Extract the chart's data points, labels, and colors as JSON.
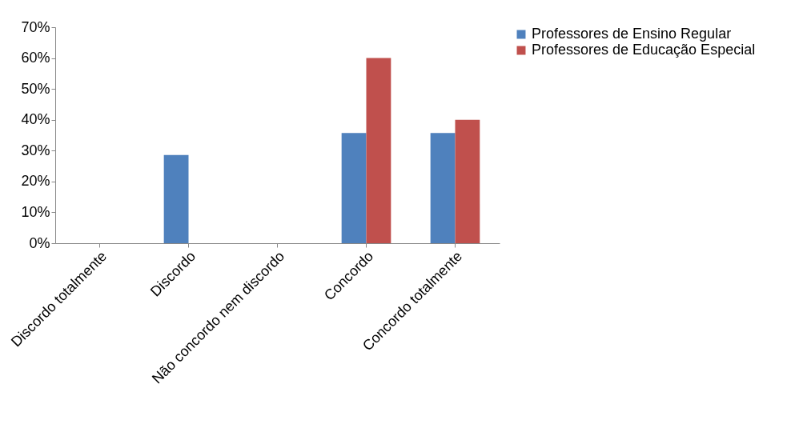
{
  "chart_data": {
    "type": "bar",
    "categories": [
      "Discordo totalmente",
      "Discordo",
      "Não concordo nem discordo",
      "Concordo",
      "Concordo totalmente"
    ],
    "series": [
      {
        "name": "Professores de Ensino Regular",
        "color": "#4f81bd",
        "values": [
          0,
          28.6,
          0,
          35.7,
          35.7
        ]
      },
      {
        "name": "Professores de Educação Especial",
        "color": "#c0504d",
        "values": [
          0,
          0,
          0,
          60,
          40
        ]
      }
    ],
    "ylim": [
      0,
      70
    ],
    "yticks": [
      {
        "value": 0,
        "label": "0%"
      },
      {
        "value": 10,
        "label": "10%"
      },
      {
        "value": 20,
        "label": "20%"
      },
      {
        "value": 30,
        "label": "30%"
      },
      {
        "value": 40,
        "label": "40%"
      },
      {
        "value": 50,
        "label": "50%"
      },
      {
        "value": 60,
        "label": "60%"
      },
      {
        "value": 70,
        "label": "70%"
      }
    ],
    "grid": false,
    "legend": "right"
  }
}
